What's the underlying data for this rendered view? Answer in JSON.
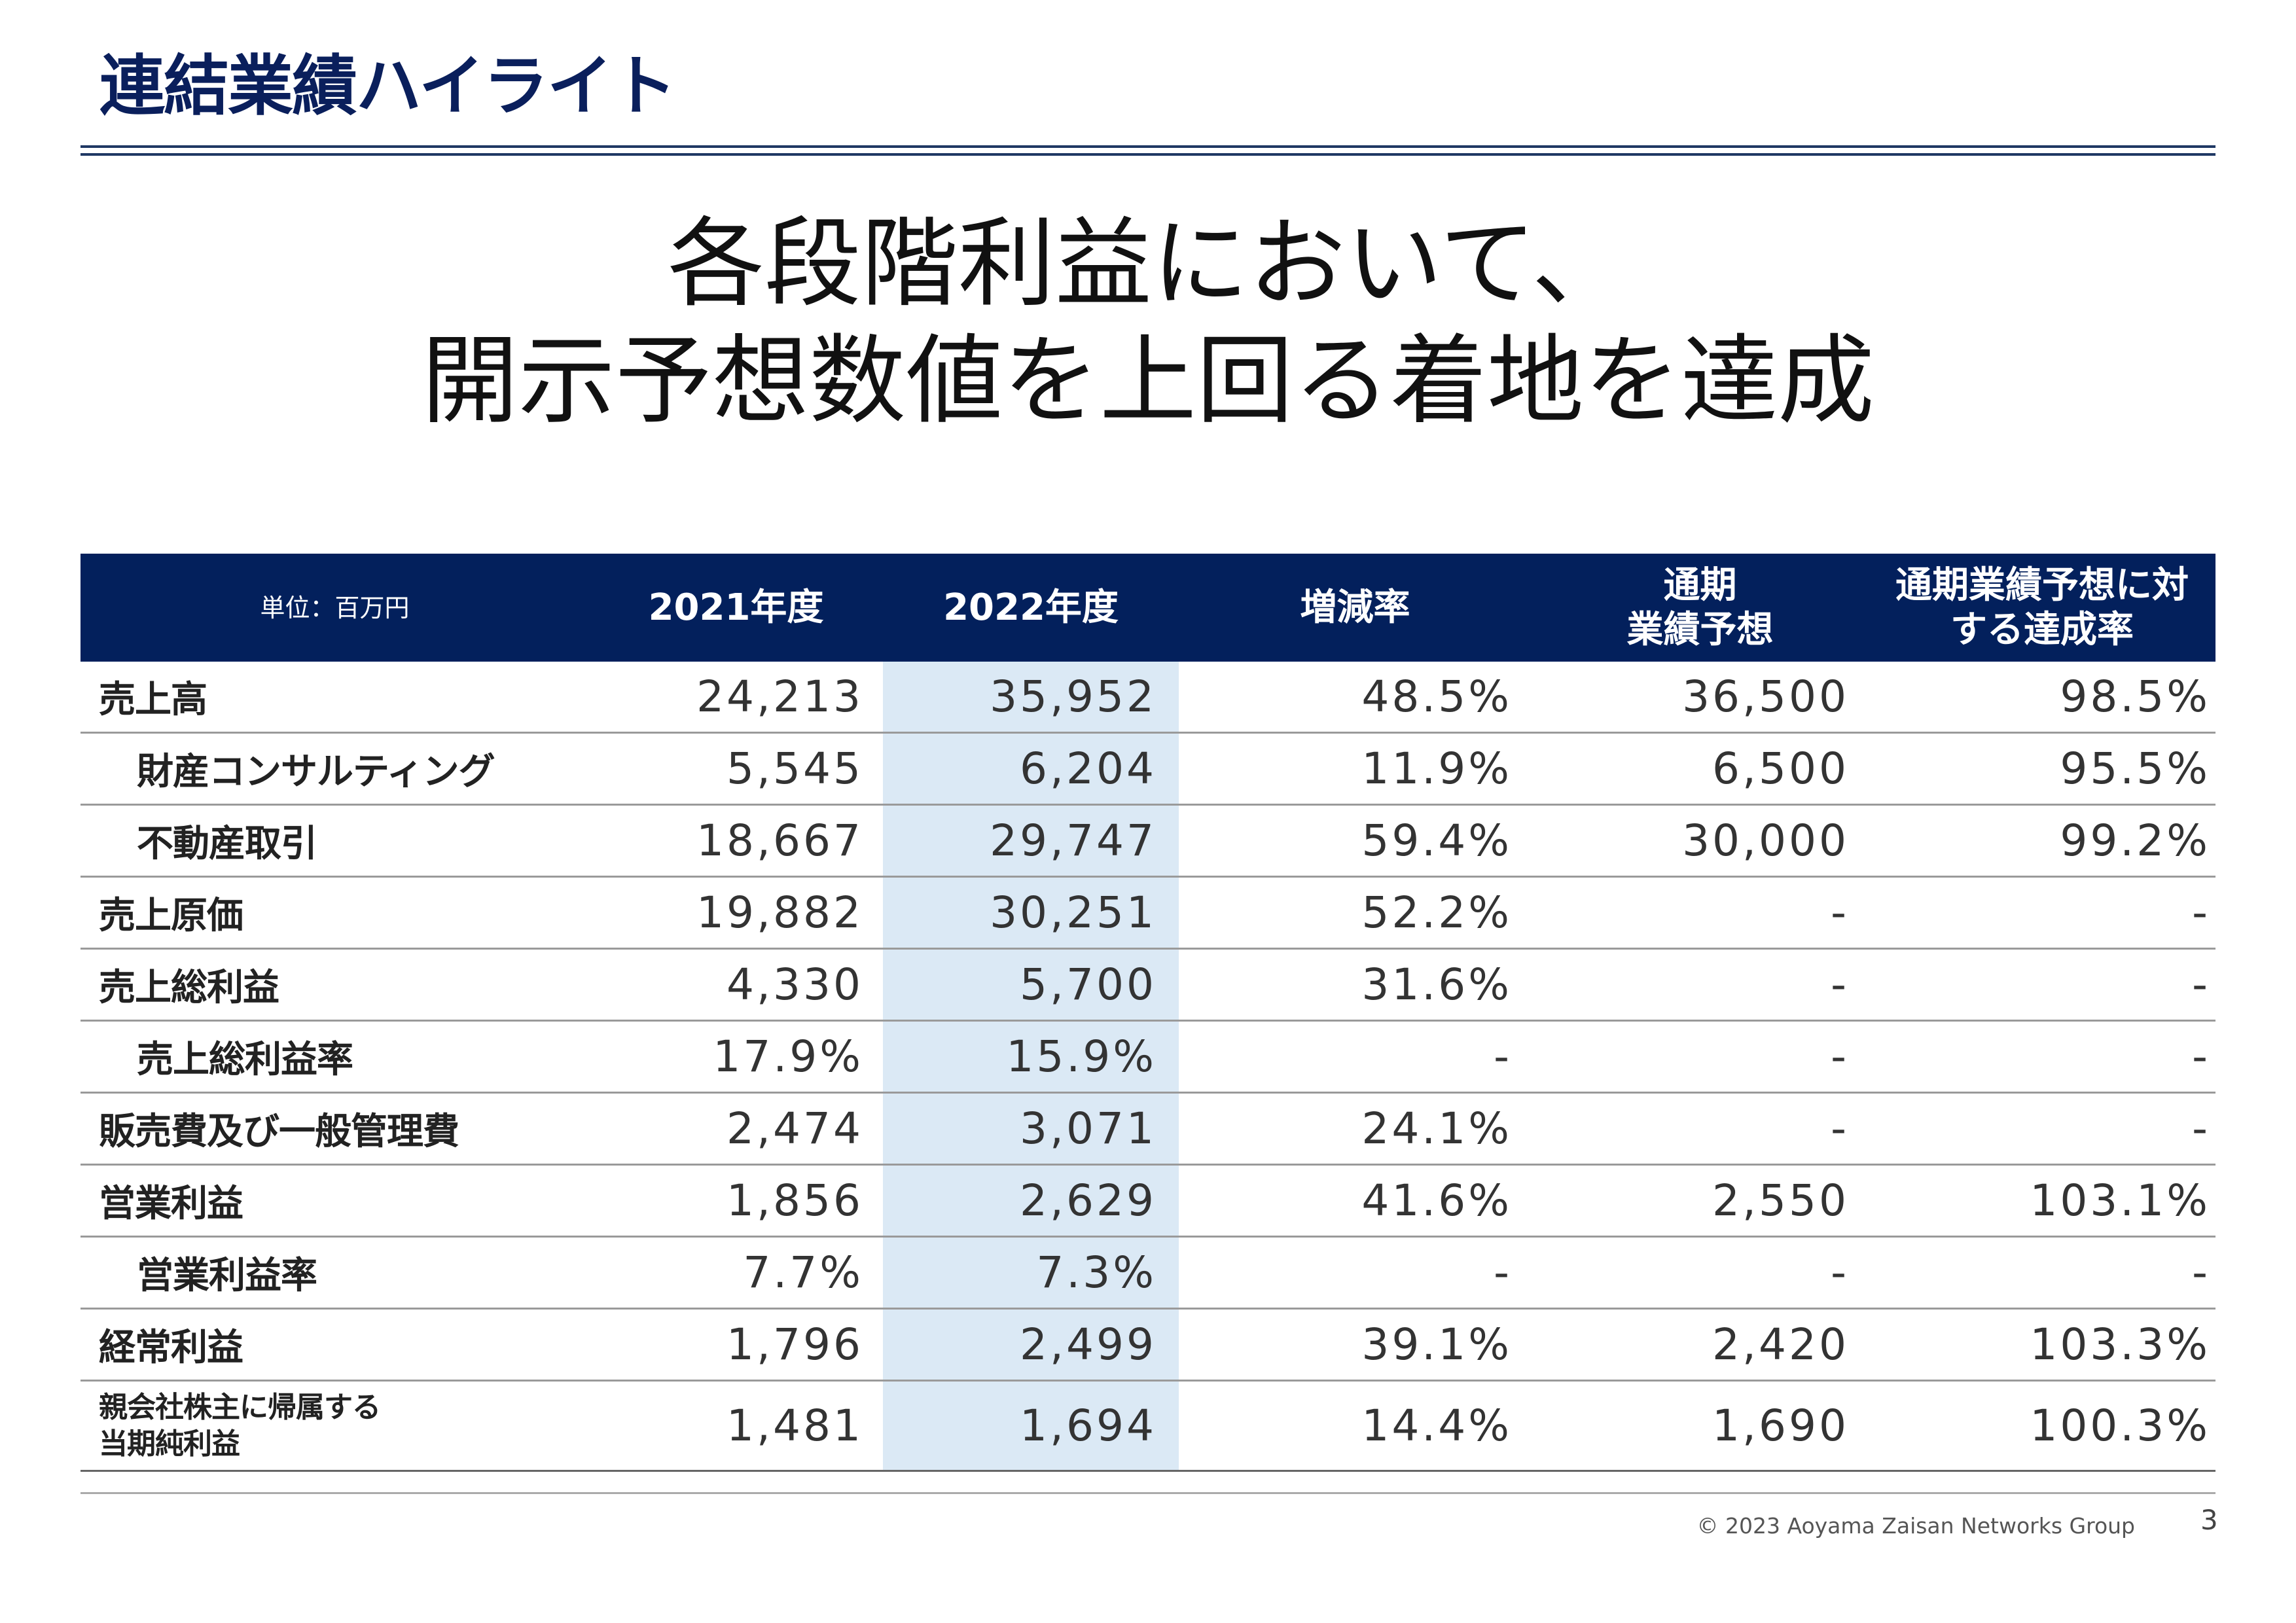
{
  "title": "連結業績ハイライト",
  "headline": [
    "各段階利益において、",
    "開示予想数値を上回る着地を達成"
  ],
  "table": {
    "unit": "単位：百万円",
    "headers": [
      "2021年度",
      "2022年度",
      "増減率",
      "通期\n業績予想",
      "通期業績予想に対\nする達成率"
    ],
    "header_lines": {
      "forecast": [
        "通期",
        "業績予想"
      ],
      "achievement": [
        "通期業績予想に対",
        "する達成率"
      ]
    },
    "rows": [
      {
        "label": "売上高",
        "indent": false,
        "values": [
          "24,213",
          "35,952",
          "48.5%",
          "36,500",
          "98.5%"
        ]
      },
      {
        "label": "財産コンサルティング",
        "indent": true,
        "values": [
          "5,545",
          "6,204",
          "11.9%",
          "6,500",
          "95.5%"
        ]
      },
      {
        "label": "不動産取引",
        "indent": true,
        "values": [
          "18,667",
          "29,747",
          "59.4%",
          "30,000",
          "99.2%"
        ]
      },
      {
        "label": "売上原価",
        "indent": false,
        "values": [
          "19,882",
          "30,251",
          "52.2%",
          "-",
          "-"
        ]
      },
      {
        "label": "売上総利益",
        "indent": false,
        "values": [
          "4,330",
          "5,700",
          "31.6%",
          "-",
          "-"
        ]
      },
      {
        "label": "売上総利益率",
        "indent": true,
        "values": [
          "17.9%",
          "15.9%",
          "-",
          "-",
          "-"
        ]
      },
      {
        "label": "販売費及び一般管理費",
        "indent": false,
        "values": [
          "2,474",
          "3,071",
          "24.1%",
          "-",
          "-"
        ]
      },
      {
        "label": "営業利益",
        "indent": false,
        "values": [
          "1,856",
          "2,629",
          "41.6%",
          "2,550",
          "103.1%"
        ]
      },
      {
        "label": "営業利益率",
        "indent": true,
        "values": [
          "7.7%",
          "7.3%",
          "-",
          "-",
          "-"
        ]
      },
      {
        "label": "経常利益",
        "indent": false,
        "values": [
          "1,796",
          "2,499",
          "39.1%",
          "2,420",
          "103.3%"
        ]
      },
      {
        "label_lines": [
          "親会社株主に帰属する",
          "当期純利益"
        ],
        "indent": false,
        "values": [
          "1,481",
          "1,694",
          "14.4%",
          "1,690",
          "100.3%"
        ]
      }
    ]
  },
  "footer": {
    "copyright": "© 2023 Aoyama Zaisan Networks Group",
    "page": "3"
  },
  "colors": {
    "navy": "#03205c",
    "highlight": "#dbe9f5",
    "title": "#0a1f5c"
  }
}
